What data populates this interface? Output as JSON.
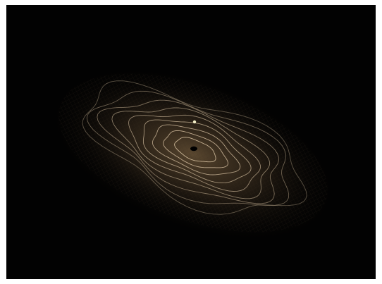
{
  "scene": {
    "description_free": true,
    "background_color": "#020202",
    "contour_color": "#d8c2a2",
    "glow_color": "#6a5438",
    "grid_color": "#3a2e22",
    "marker_light_color": "#f4f0c8",
    "marker_dark_color": "#000000",
    "contour_count": 9
  }
}
